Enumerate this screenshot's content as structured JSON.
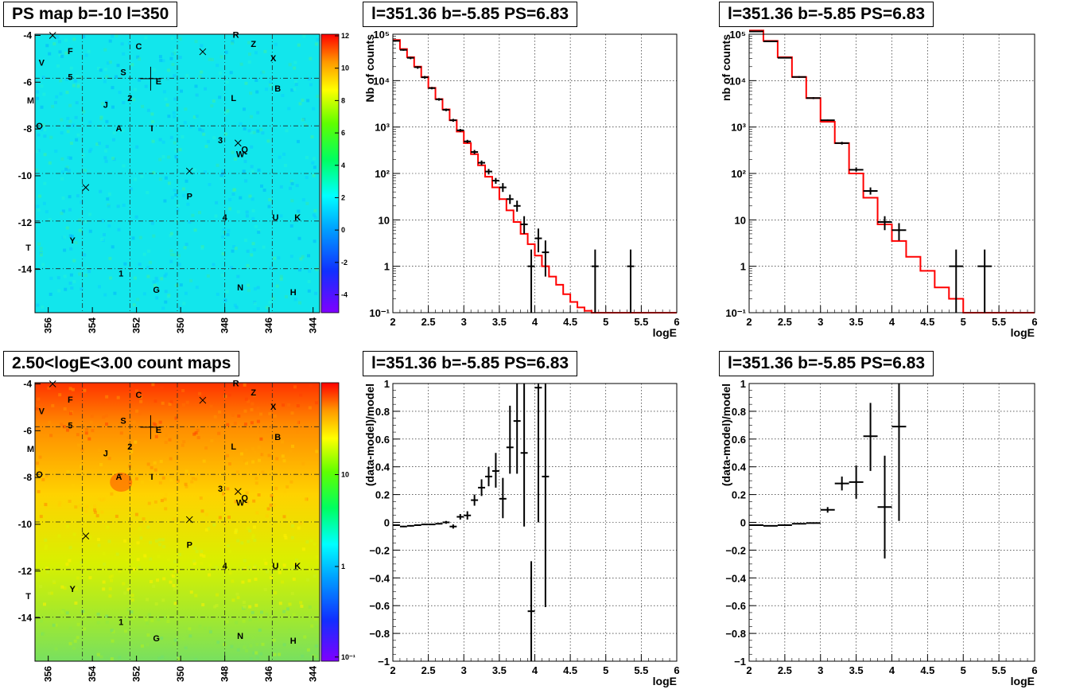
{
  "panels": {
    "map1": {
      "title": "PS map b=-10 l=350",
      "x_ticks": [
        "356",
        "354",
        "352",
        "350",
        "348",
        "346",
        "344"
      ],
      "y_ticks": [
        "-4",
        "-6",
        "-8",
        "-10",
        "-12",
        "-14"
      ],
      "z_ticks": [
        "12",
        "10",
        "8",
        "6",
        "4",
        "2",
        "0",
        "-2",
        "-4"
      ],
      "z_scale": "linear",
      "colormap": "rainbow"
    },
    "map2": {
      "title": "2.50<logE<3.00 count maps",
      "x_ticks": [
        "356",
        "354",
        "352",
        "350",
        "348",
        "346",
        "344"
      ],
      "y_ticks": [
        "-4",
        "-6",
        "-8",
        "-10",
        "-12",
        "-14"
      ],
      "z_ticks": [
        "10",
        "1",
        "10⁻¹"
      ],
      "z_scale": "log",
      "colormap": "rainbow"
    },
    "spec1": {
      "title": "l=351.36 b=-5.85 PS=6.83"
    },
    "spec2": {
      "title": "l=351.36 b=-5.85 PS=6.83"
    },
    "res1": {
      "title": "l=351.36 b=-5.85 PS=6.83"
    },
    "res2": {
      "title": "l=351.36 b=-5.85 PS=6.83"
    }
  },
  "map_labels": [
    {
      "t": "F",
      "l": 355.0,
      "b": -4.8
    },
    {
      "t": "C",
      "l": 351.9,
      "b": -4.6
    },
    {
      "t": "R",
      "l": 347.5,
      "b": -4.1
    },
    {
      "t": "Z",
      "l": 346.7,
      "b": -4.5
    },
    {
      "t": "X",
      "l": 345.8,
      "b": -5.1
    },
    {
      "t": "V",
      "l": 356.3,
      "b": -5.3
    },
    {
      "t": "S",
      "l": 352.6,
      "b": -5.7
    },
    {
      "t": "5",
      "l": 355.0,
      "b": -5.9
    },
    {
      "t": "E",
      "l": 351.0,
      "b": -6.1
    },
    {
      "t": "B",
      "l": 345.6,
      "b": -6.4
    },
    {
      "t": "M",
      "l": 356.8,
      "b": -6.9
    },
    {
      "t": "2",
      "l": 352.3,
      "b": -6.8
    },
    {
      "t": "L",
      "l": 347.6,
      "b": -6.8
    },
    {
      "t": "J",
      "l": 353.4,
      "b": -7.1
    },
    {
      "t": "O",
      "l": 356.4,
      "b": -8.0
    },
    {
      "t": "A",
      "l": 352.8,
      "b": -8.1
    },
    {
      "t": "I",
      "l": 351.3,
      "b": -8.1
    },
    {
      "t": "3",
      "l": 348.2,
      "b": -8.6
    },
    {
      "t": "Q",
      "l": 347.1,
      "b": -9.0
    },
    {
      "t": "W",
      "l": 347.3,
      "b": -9.2
    },
    {
      "t": "P",
      "l": 349.6,
      "b": -11.0
    },
    {
      "t": "4",
      "l": 348.0,
      "b": -11.9
    },
    {
      "t": "U",
      "l": 345.7,
      "b": -11.9
    },
    {
      "t": "K",
      "l": 344.7,
      "b": -11.9
    },
    {
      "t": "Y",
      "l": 354.9,
      "b": -12.9
    },
    {
      "t": "T",
      "l": 356.9,
      "b": -13.2
    },
    {
      "t": "1",
      "l": 352.7,
      "b": -14.3
    },
    {
      "t": "G",
      "l": 351.1,
      "b": -15.0
    },
    {
      "t": "N",
      "l": 347.3,
      "b": -14.9
    },
    {
      "t": "H",
      "l": 344.9,
      "b": -15.1
    }
  ],
  "map_crosses": [
    {
      "l": 355.8,
      "b": -4.0
    },
    {
      "l": 349.0,
      "b": -4.7
    },
    {
      "l": 347.4,
      "b": -8.6
    },
    {
      "l": 349.6,
      "b": -9.8
    },
    {
      "l": 354.3,
      "b": -10.5
    }
  ],
  "map_center_cross": {
    "l": 351.36,
    "b": -5.85
  },
  "chart_data": [
    {
      "type": "scatter",
      "title": "l=351.36 b=-5.85 PS=6.83",
      "xlabel": "logE",
      "ylabel": "Nb of counts",
      "xlim": [
        2,
        6
      ],
      "ylim": [
        0.1,
        100000
      ],
      "yscale": "log",
      "x_ticks": [
        "2",
        "2.5",
        "3",
        "3.5",
        "4",
        "4.5",
        "5",
        "5.5",
        "6"
      ],
      "y_ticks": [
        "10⁻¹",
        "1",
        "10",
        "10²",
        "10³",
        "10⁴",
        "10⁵"
      ],
      "grid": true,
      "series": [
        {
          "kind": "model",
          "color": "#ff0000",
          "bin_width": 0.1,
          "x": [
            2.0,
            2.1,
            2.2,
            2.3,
            2.4,
            2.5,
            2.6,
            2.7,
            2.8,
            2.9,
            3.0,
            3.1,
            3.2,
            3.3,
            3.4,
            3.5,
            3.6,
            3.7,
            3.8,
            3.9,
            4.0,
            4.1,
            4.2,
            4.3,
            4.4,
            4.5,
            4.6,
            4.7,
            4.8,
            4.9,
            5.0,
            5.1,
            5.2,
            5.3,
            5.4,
            5.5,
            5.6,
            5.7,
            5.8,
            5.9
          ],
          "y": [
            75000,
            48000,
            32000,
            20000,
            12000,
            7000,
            4000,
            2400,
            1400,
            800,
            450,
            260,
            150,
            85,
            50,
            28,
            16,
            9,
            5,
            3,
            1.7,
            1.0,
            0.6,
            0.4,
            0.25,
            0.17,
            0.13,
            0.11,
            0.1,
            0.1,
            0.1,
            0.1,
            0.1,
            0.1,
            0.1,
            0.1,
            0.1,
            0.1,
            0.1,
            0.1
          ]
        },
        {
          "kind": "data",
          "color": "#000000",
          "xerr": 0.05,
          "x": [
            2.05,
            2.15,
            2.25,
            2.35,
            2.45,
            2.55,
            2.65,
            2.75,
            2.85,
            2.95,
            3.05,
            3.15,
            3.25,
            3.35,
            3.45,
            3.55,
            3.65,
            3.75,
            3.85,
            3.95,
            4.05,
            4.15,
            4.85,
            5.35
          ],
          "y": [
            72000,
            46000,
            31000,
            19500,
            11800,
            6900,
            3950,
            2350,
            1400,
            850,
            490,
            290,
            170,
            110,
            70,
            50,
            28,
            20,
            8,
            1,
            4,
            2,
            1,
            1
          ],
          "ylo": [
            70000,
            44000,
            29000,
            18000,
            11000,
            6500,
            3700,
            2200,
            1300,
            790,
            450,
            260,
            150,
            95,
            60,
            40,
            22,
            15,
            5,
            0.1,
            2,
            0.6,
            0.1,
            0.1
          ],
          "yhi": [
            74000,
            48000,
            32500,
            20500,
            12600,
            7300,
            4200,
            2500,
            1500,
            910,
            530,
            320,
            190,
            125,
            80,
            62,
            35,
            26,
            12,
            2.3,
            6.5,
            3.6,
            2.3,
            2.3
          ]
        }
      ]
    },
    {
      "type": "scatter",
      "title": "l=351.36 b=-5.85 PS=6.83",
      "xlabel": "logE",
      "ylabel": "nb of counts",
      "xlim": [
        2,
        6
      ],
      "ylim": [
        0.1,
        100000
      ],
      "yscale": "log",
      "x_ticks": [
        "2",
        "2.5",
        "3",
        "3.5",
        "4",
        "4.5",
        "5",
        "5.5",
        "6"
      ],
      "y_ticks": [
        "10⁻¹",
        "1",
        "10",
        "10²",
        "10³",
        "10⁴",
        "10⁵"
      ],
      "grid": true,
      "series": [
        {
          "kind": "model",
          "color": "#ff0000",
          "bin_width": 0.2,
          "x": [
            2.0,
            2.2,
            2.4,
            2.6,
            2.8,
            3.0,
            3.2,
            3.4,
            3.6,
            3.8,
            4.0,
            4.2,
            4.4,
            4.6,
            4.8,
            5.0,
            5.2,
            5.4,
            5.6,
            5.8
          ],
          "y": [
            120000,
            72000,
            32000,
            12000,
            4200,
            1300,
            450,
            100,
            30,
            8,
            3.5,
            1.6,
            0.8,
            0.35,
            0.2,
            0.1,
            0.1,
            0.1,
            0.1,
            0.1
          ]
        },
        {
          "kind": "data",
          "color": "#000000",
          "xerr": 0.1,
          "x": [
            2.1,
            2.3,
            2.5,
            2.7,
            2.9,
            3.1,
            3.3,
            3.5,
            3.7,
            3.9,
            4.1,
            4.9,
            5.3
          ],
          "y": [
            115000,
            70000,
            31000,
            12000,
            4200,
            1400,
            450,
            120,
            42,
            9,
            6,
            1,
            1
          ],
          "ylo": [
            113000,
            69000,
            30000,
            11500,
            4000,
            1350,
            420,
            110,
            35,
            6,
            3.6,
            0.1,
            0.1
          ],
          "yhi": [
            117000,
            71000,
            32000,
            12500,
            4400,
            1450,
            480,
            135,
            50,
            12,
            8.5,
            2.3,
            2.3
          ]
        }
      ]
    },
    {
      "type": "scatter",
      "title": "l=351.36 b=-5.85 PS=6.83",
      "xlabel": "logE",
      "ylabel": "(data-model)/model",
      "xlim": [
        2,
        6
      ],
      "ylim": [
        -1,
        1
      ],
      "yscale": "linear",
      "x_ticks": [
        "2",
        "2.5",
        "3",
        "3.5",
        "4",
        "4.5",
        "5",
        "5.5",
        "6"
      ],
      "y_ticks": [
        "−1",
        "−0.8",
        "−0.6",
        "−0.4",
        "−0.2",
        "0",
        "0.2",
        "0.4",
        "0.6",
        "0.8",
        "1"
      ],
      "grid": true,
      "series": [
        {
          "kind": "data",
          "color": "#000000",
          "xerr": 0.05,
          "x": [
            2.05,
            2.15,
            2.25,
            2.35,
            2.45,
            2.55,
            2.65,
            2.75,
            2.85,
            2.95,
            3.05,
            3.15,
            3.25,
            3.35,
            3.45,
            3.55,
            3.65,
            3.75,
            3.85,
            3.95,
            4.05,
            4.15
          ],
          "y": [
            -0.02,
            -0.03,
            -0.025,
            -0.02,
            -0.015,
            -0.015,
            -0.01,
            0.0,
            -0.03,
            0.04,
            0.05,
            0.16,
            0.25,
            0.33,
            0.37,
            0.17,
            0.54,
            0.73,
            0.5,
            -0.64,
            0.97,
            0.33
          ],
          "ylo": [
            -0.025,
            -0.035,
            -0.03,
            -0.025,
            -0.02,
            -0.02,
            -0.015,
            -0.01,
            -0.045,
            0.02,
            0.02,
            0.12,
            0.19,
            0.26,
            0.25,
            0.03,
            0.35,
            0.35,
            -0.03,
            -1.0,
            0.0,
            -0.61
          ],
          "yhi": [
            -0.015,
            -0.025,
            -0.02,
            -0.015,
            -0.01,
            -0.01,
            -0.005,
            0.01,
            -0.015,
            0.06,
            0.08,
            0.2,
            0.31,
            0.4,
            0.5,
            0.32,
            0.84,
            1.0,
            1.0,
            -0.28,
            1.0,
            1.0
          ]
        }
      ]
    },
    {
      "type": "scatter",
      "title": "l=351.36 b=-5.85 PS=6.83",
      "xlabel": "logE",
      "ylabel": "(data-model)/model",
      "xlim": [
        2,
        6
      ],
      "ylim": [
        -1,
        1
      ],
      "yscale": "linear",
      "x_ticks": [
        "2",
        "2.5",
        "3",
        "3.5",
        "4",
        "4.5",
        "5",
        "5.5",
        "6"
      ],
      "y_ticks": [
        "−1",
        "−0.8",
        "−0.6",
        "−0.4",
        "−0.2",
        "0",
        "0.2",
        "0.4",
        "0.6",
        "0.8",
        "1"
      ],
      "grid": true,
      "series": [
        {
          "kind": "data",
          "color": "#000000",
          "xerr": 0.1,
          "x": [
            2.1,
            2.3,
            2.5,
            2.7,
            2.9,
            3.1,
            3.3,
            3.5,
            3.7,
            3.9,
            4.1
          ],
          "y": [
            -0.02,
            -0.025,
            -0.02,
            -0.01,
            -0.005,
            0.09,
            0.28,
            0.29,
            0.62,
            0.11,
            0.69
          ],
          "ylo": [
            -0.022,
            -0.027,
            -0.022,
            -0.015,
            -0.01,
            0.07,
            0.23,
            0.17,
            0.37,
            -0.26,
            0.01
          ],
          "yhi": [
            -0.018,
            -0.023,
            -0.018,
            -0.005,
            0.0,
            0.11,
            0.33,
            0.41,
            0.86,
            0.48,
            1.0
          ]
        }
      ]
    }
  ]
}
